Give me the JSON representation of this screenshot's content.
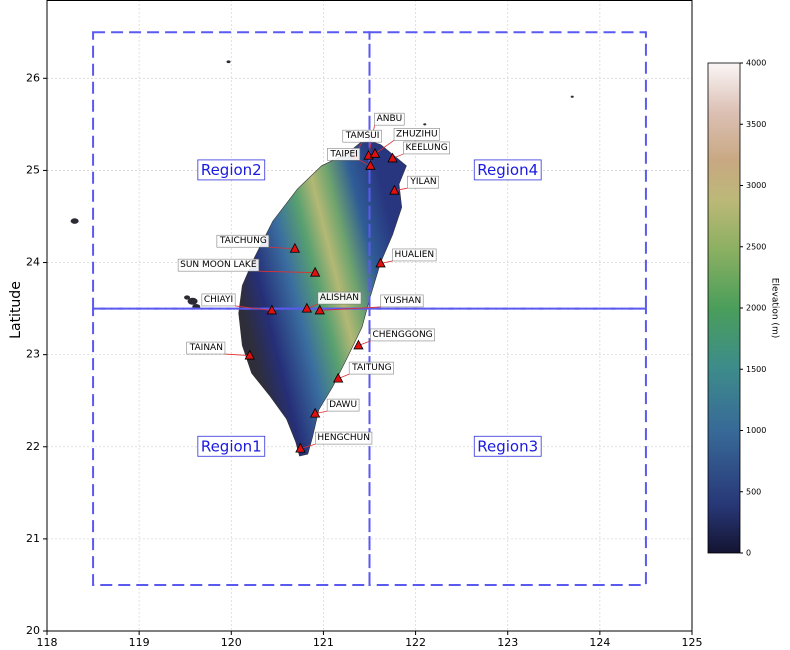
{
  "map": {
    "xlim": [
      118,
      125
    ],
    "ylim": [
      20,
      26.85
    ],
    "xticks": [
      118,
      119,
      120,
      121,
      122,
      123,
      124,
      125
    ],
    "yticks": [
      20,
      21,
      22,
      23,
      24,
      25,
      26
    ],
    "ylabel": "Latitude",
    "grid": true,
    "regions": [
      {
        "name": "Region1",
        "lon": [
          118.5,
          121.5
        ],
        "lat": [
          20.5,
          23.5
        ]
      },
      {
        "name": "Region2",
        "lon": [
          118.5,
          121.5
        ],
        "lat": [
          23.5,
          26.5
        ]
      },
      {
        "name": "Region3",
        "lon": [
          121.5,
          124.5
        ],
        "lat": [
          20.5,
          23.5
        ]
      },
      {
        "name": "Region4",
        "lon": [
          121.5,
          124.5
        ],
        "lat": [
          23.5,
          26.5
        ]
      }
    ],
    "stations": [
      {
        "name": "ANBU",
        "lon": 121.49,
        "lat": 25.16
      },
      {
        "name": "TAMSUI",
        "lon": 121.34,
        "lat": 25.16
      },
      {
        "name": "TAIPEI",
        "lon": 121.51,
        "lat": 25.05
      },
      {
        "name": "ZHUZIHU",
        "lon": 121.56,
        "lat": 25.18
      },
      {
        "name": "KEELUNG",
        "lon": 121.75,
        "lat": 25.13
      },
      {
        "name": "YILAN",
        "lon": 121.77,
        "lat": 24.78
      },
      {
        "name": "TAICHUNG",
        "lon": 120.69,
        "lat": 24.15
      },
      {
        "name": "SUN MOON LAKE",
        "lon": 120.91,
        "lat": 23.89
      },
      {
        "name": "CHIAYI",
        "lon": 120.44,
        "lat": 23.48
      },
      {
        "name": "ALISHAN",
        "lon": 120.82,
        "lat": 23.5
      },
      {
        "name": "YUSHAN",
        "lon": 120.96,
        "lat": 23.48
      },
      {
        "name": "HUALIEN",
        "lon": 121.62,
        "lat": 23.99
      },
      {
        "name": "CHENGGONG",
        "lon": 121.38,
        "lat": 23.1
      },
      {
        "name": "TAITUNG",
        "lon": 121.16,
        "lat": 22.74
      },
      {
        "name": "TAINAN",
        "lon": 120.2,
        "lat": 22.99
      },
      {
        "name": "DAWU",
        "lon": 120.91,
        "lat": 22.36
      },
      {
        "name": "HENGCHUN",
        "lon": 120.75,
        "lat": 21.98
      }
    ],
    "colorbar": {
      "label": "Elevation (m)",
      "lim": [
        0,
        4000
      ],
      "ticks": [
        0,
        500,
        1000,
        1500,
        2000,
        2500,
        3000,
        3500,
        4000
      ]
    }
  }
}
